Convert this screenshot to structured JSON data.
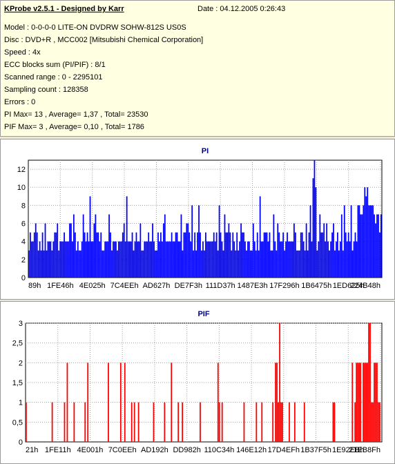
{
  "info": {
    "title": "KProbe v2.5.1 - Designed by Karr",
    "date": "Date : 04.12.2005 0:26:43",
    "lines": [
      "Model : 0-0-0-0 LITE-ON DVDRW SOHW-812S US0S",
      "Disc : DVD+R , MCC002 [Mitsubishi Chemical Corporation]",
      "Speed : 4x",
      "ECC blocks sum (PI/PIF) : 8/1",
      "Scanned range : 0 - 2295101",
      "Sampling count : 128358",
      "Errors : 0",
      "PI Max= 13 , Average= 1,37 , Total= 23530",
      "PIF Max= 3 , Average= 0,10 , Total= 1786"
    ]
  },
  "colors": {
    "pi": "#0000ff",
    "pif": "#ff0000",
    "title": "#000080",
    "grid": "#a0a0a0"
  },
  "chart_data": [
    {
      "type": "bar",
      "title": "PI",
      "ylim": [
        0,
        13
      ],
      "yticks": [
        "0",
        "2",
        "4",
        "6",
        "8",
        "10",
        "12"
      ],
      "ytick_values": [
        0,
        2,
        4,
        6,
        8,
        10,
        12
      ],
      "xticks": [
        "89h",
        "1FE46h",
        "4E025h",
        "7C4EEh",
        "AD627h",
        "DE7F3h",
        "111D37h",
        "1487E3h",
        "17F296h",
        "1B6475h",
        "1ED625h",
        "224B48h"
      ],
      "grid": true,
      "series": [
        {
          "values": []
        }
      ]
    },
    {
      "type": "bar",
      "title": "PIF",
      "ylim": [
        0,
        3
      ],
      "yticks": [
        "0",
        "0,5",
        "1",
        "1,5",
        "2",
        "2,5",
        "3"
      ],
      "ytick_values": [
        0,
        0.5,
        1,
        1.5,
        2,
        2.5,
        3
      ],
      "xticks": [
        "21h",
        "1FE11h",
        "4E001h",
        "7C0EEh",
        "AD192h",
        "DD982h",
        "110C34h",
        "146E12h",
        "17D4EFh",
        "1B37F5h",
        "1E92EBh",
        "21EB8Fh"
      ],
      "grid": true,
      "series": [
        {
          "values": []
        }
      ]
    }
  ]
}
